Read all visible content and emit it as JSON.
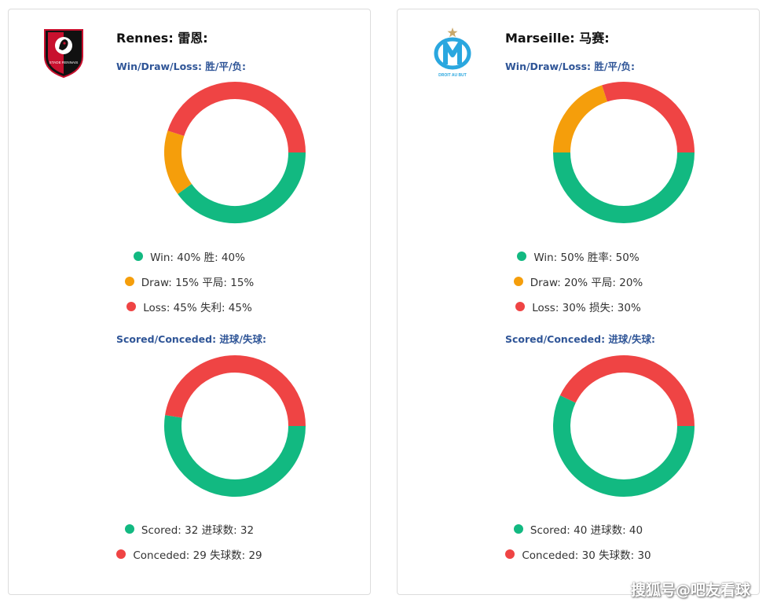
{
  "colors": {
    "win": "#12b981",
    "draw": "#f59e0b",
    "loss": "#ef4444",
    "scored": "#12b981",
    "conceded": "#ef4444"
  },
  "teams": [
    {
      "title": "Rennes: 雷恩:",
      "logo_icon": "stade-rennais-crest-icon",
      "logo_text": "STADE RENNAIS",
      "wdl_label": "Win/Draw/Loss: 胜/平/负:",
      "goals_label": "Scored/Conceded: 进球/失球:",
      "wdl_legend": [
        "Win: 40%  胜: 40%",
        "Draw: 15%  平局: 15%",
        "Loss: 45%  失利: 45%"
      ],
      "goals_legend": [
        "Scored: 32  进球数: 32",
        "Conceded: 29  失球数: 29"
      ]
    },
    {
      "title": "Marseille: 马赛:",
      "logo_icon": "olympique-marseille-crest-icon",
      "logo_text": "DROIT AU BUT",
      "wdl_label": "Win/Draw/Loss: 胜/平/负:",
      "goals_label": "Scored/Conceded: 进球/失球:",
      "wdl_legend": [
        "Win: 50%  胜率: 50%",
        "Draw: 20%  平局: 20%",
        "Loss: 30%  损失: 30%"
      ],
      "goals_legend": [
        "Scored: 40  进球数: 40",
        "Conceded: 30  失球数: 30"
      ]
    }
  ],
  "chart_data": [
    {
      "type": "pie",
      "style": "donut",
      "categories": [
        "Win",
        "Draw",
        "Loss"
      ],
      "values": [
        40,
        15,
        45
      ],
      "unit": "%"
    },
    {
      "type": "pie",
      "style": "donut",
      "categories": [
        "Scored",
        "Conceded"
      ],
      "values": [
        32,
        29
      ]
    },
    {
      "type": "pie",
      "style": "donut",
      "categories": [
        "Win",
        "Draw",
        "Loss"
      ],
      "values": [
        50,
        20,
        30
      ],
      "unit": "%"
    },
    {
      "type": "pie",
      "style": "donut",
      "categories": [
        "Scored",
        "Conceded"
      ],
      "values": [
        40,
        30
      ]
    }
  ],
  "watermark": "搜狐号@吧友看球"
}
